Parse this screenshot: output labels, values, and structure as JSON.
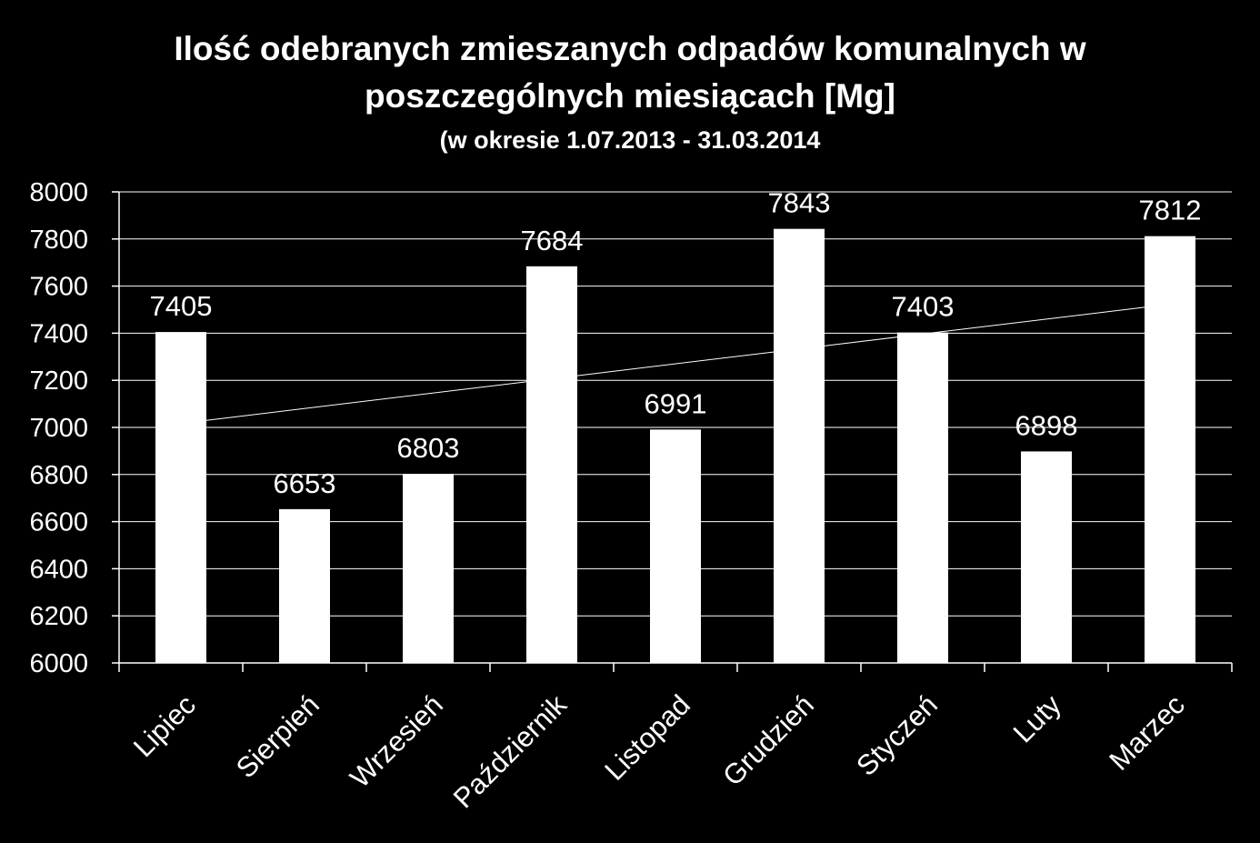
{
  "chart_data": {
    "type": "bar",
    "title_line1": "Ilość odebranych zmieszanych odpadów komunalnych w",
    "title_line2": "poszczególnych miesiącach [Mg]",
    "subtitle": "(w okresie 1.07.2013 - 31.03.2014",
    "categories": [
      "Lipiec",
      "Sierpień",
      "Wrzesień",
      "Październik",
      "Listopad",
      "Grudzień",
      "Styczeń",
      "Luty",
      "Marzec"
    ],
    "values": [
      7405,
      6653,
      6803,
      7684,
      6991,
      7843,
      7403,
      6898,
      7812
    ],
    "ylim": [
      6000,
      8000
    ],
    "yticks": [
      6000,
      6200,
      6400,
      6600,
      6800,
      7000,
      7200,
      7400,
      7600,
      7800,
      8000
    ],
    "trendline": {
      "type": "linear",
      "start": 7030,
      "end": 7510
    },
    "grid": true,
    "legend": "none",
    "colors": {
      "background": "#000000",
      "bars": "#ffffff",
      "grid": "#ffffff",
      "text": "#ffffff"
    }
  }
}
